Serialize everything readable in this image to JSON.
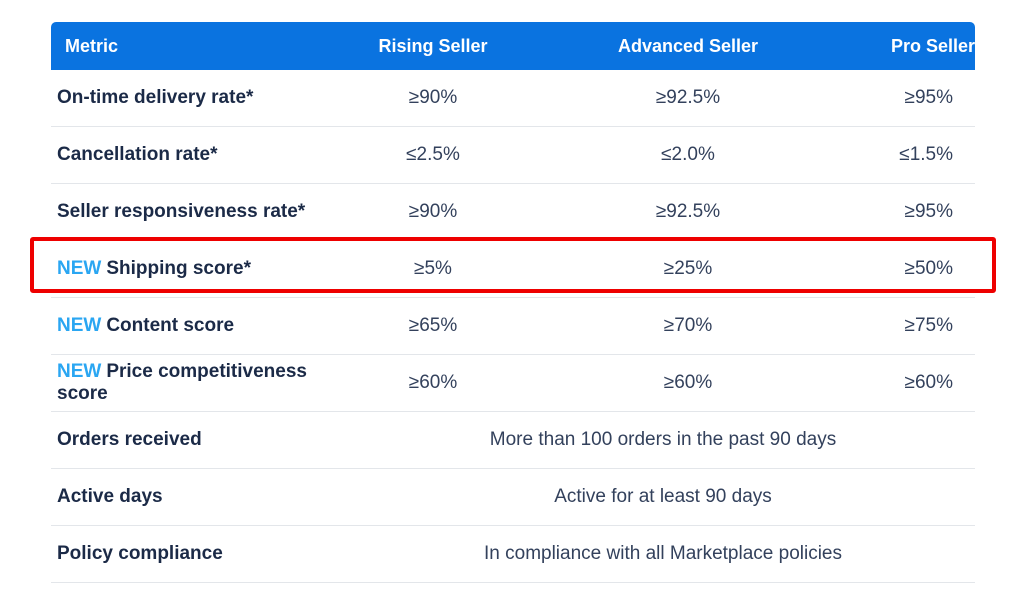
{
  "header": {
    "metric": "Metric",
    "rising": "Rising Seller",
    "advanced": "Advanced Seller",
    "pro": "Pro Seller"
  },
  "new_badge": "NEW",
  "rows": [
    {
      "metric": "On-time delivery rate*",
      "rising": "≥90%",
      "advanced": "≥92.5%",
      "pro": "≥95%"
    },
    {
      "metric": "Cancellation rate*",
      "rising": "≤2.5%",
      "advanced": "≤2.0%",
      "pro": "≤1.5%"
    },
    {
      "metric": "Seller responsiveness rate*",
      "rising": "≥90%",
      "advanced": "≥92.5%",
      "pro": "≥95%"
    },
    {
      "metric": "Shipping score*",
      "rising": "≥5%",
      "advanced": "≥25%",
      "pro": "≥50%"
    },
    {
      "metric": "Content score",
      "rising": "≥65%",
      "advanced": "≥70%",
      "pro": "≥75%"
    },
    {
      "metric": "Price competitiveness score",
      "rising": "≥60%",
      "advanced": "≥60%",
      "pro": "≥60%"
    },
    {
      "metric": "Orders received",
      "span": "More than 100 orders in the past 90 days"
    },
    {
      "metric": "Active days",
      "span": "Active for at least 90 days"
    },
    {
      "metric": "Policy compliance",
      "span": "In compliance with all Marketplace policies"
    }
  ],
  "colors": {
    "header_bg": "#0a73e0",
    "new_badge": "#2aa6f2",
    "highlight_border": "#ee0000"
  }
}
